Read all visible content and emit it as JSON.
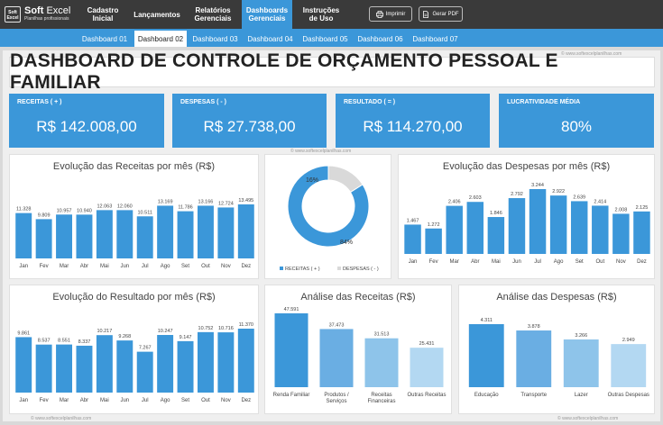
{
  "app": {
    "logo_badge": "Soft Excel",
    "logo_bold": "Soft",
    "logo_light": "Excel",
    "logo_sub": "Planilhas profissionais"
  },
  "nav": [
    {
      "label": "Cadastro Inicial"
    },
    {
      "label": "Lançamentos"
    },
    {
      "label": "Relatórios Gerenciais"
    },
    {
      "label": "Dashboards Gerenciais"
    },
    {
      "label": "Instruções de Uso"
    }
  ],
  "actions": {
    "print": "Imprimir",
    "pdf": "Gerar PDF"
  },
  "tabs": [
    "Dashboard 01",
    "Dashboard 02",
    "Dashboard 03",
    "Dashboard 04",
    "Dashboard 05",
    "Dashboard 06",
    "Dashboard 07"
  ],
  "watermark": "© www.softexcelplanilhas.com",
  "title": "DASHBOARD DE CONTROLE DE ORÇAMENTO PESSOAL E FAMILIAR",
  "kpis": [
    {
      "label": "RECEITAS ( + )",
      "value": "R$ 142.008,00"
    },
    {
      "label": "DESPESAS ( - )",
      "value": "R$ 27.738,00"
    },
    {
      "label": "RESULTADO ( = )",
      "value": "R$ 114.270,00"
    },
    {
      "label": "LUCRATIVIDADE MÉDIA",
      "value": "80%"
    }
  ],
  "colors": {
    "accent": "#3b97d9",
    "topbar": "#3a3a3a",
    "donut_gray": "#d9d9d9"
  },
  "chart_data": [
    {
      "type": "bar",
      "title": "Evolução das Receitas por mês (R$)",
      "categories": [
        "Jan",
        "Fev",
        "Mar",
        "Abr",
        "Mai",
        "Jun",
        "Jul",
        "Ago",
        "Set",
        "Out",
        "Nov",
        "Dez"
      ],
      "values": [
        11328,
        9809,
        10957,
        10940,
        12063,
        12060,
        10511,
        13169,
        11786,
        13166,
        12724,
        13495
      ],
      "labels": [
        "11.328",
        "9.809",
        "10.957",
        "10.940",
        "12.063",
        "12.060",
        "10.511",
        "13.169",
        "11.786",
        "13.166",
        "12.724",
        "13.495"
      ]
    },
    {
      "type": "pie",
      "categories": [
        "RECEITAS ( + )",
        "DESPESAS ( - )"
      ],
      "values": [
        84,
        16
      ],
      "labels": [
        "84%",
        "16%"
      ]
    },
    {
      "type": "bar",
      "title": "Evolução das Despesas por mês (R$)",
      "categories": [
        "Jan",
        "Fev",
        "Mar",
        "Abr",
        "Mai",
        "Jun",
        "Jul",
        "Ago",
        "Set",
        "Out",
        "Nov",
        "Dez"
      ],
      "values": [
        1467,
        1272,
        2406,
        2603,
        1846,
        2792,
        3244,
        2922,
        2639,
        2414,
        2008,
        2125
      ],
      "labels": [
        "1.467",
        "1.272",
        "2.406",
        "2.603",
        "1.846",
        "2.792",
        "3.244",
        "2.922",
        "2.639",
        "2.414",
        "2.008",
        "2.125"
      ]
    },
    {
      "type": "bar",
      "title": "Evolução do Resultado por mês (R$)",
      "categories": [
        "Jan",
        "Fev",
        "Mar",
        "Abr",
        "Mai",
        "Jun",
        "Jul",
        "Ago",
        "Set",
        "Out",
        "Nov",
        "Dez"
      ],
      "values": [
        9861,
        8537,
        8551,
        8337,
        10217,
        9268,
        7267,
        10247,
        9147,
        10752,
        10716,
        11370
      ],
      "labels": [
        "9.861",
        "8.537",
        "8.551",
        "8.337",
        "10.217",
        "9.268",
        "7.267",
        "10.247",
        "9.147",
        "10.752",
        "10.716",
        "11.370"
      ]
    },
    {
      "type": "bar",
      "title": "Análise das Receitas (R$)",
      "categories": [
        "Renda Familiar",
        "Produtos / Serviços",
        "Receitas Financeiras",
        "Outras Receitas"
      ],
      "values": [
        47591,
        37473,
        31513,
        25431
      ],
      "labels": [
        "47.591",
        "37.473",
        "31.513",
        "25.431"
      ]
    },
    {
      "type": "bar",
      "title": "Análise das Despesas (R$)",
      "categories": [
        "Educação",
        "Transporte",
        "Lazer",
        "Outras Despesas"
      ],
      "values": [
        4311,
        3878,
        3266,
        2949
      ],
      "labels": [
        "4.311",
        "3.878",
        "3.266",
        "2.949"
      ]
    }
  ]
}
